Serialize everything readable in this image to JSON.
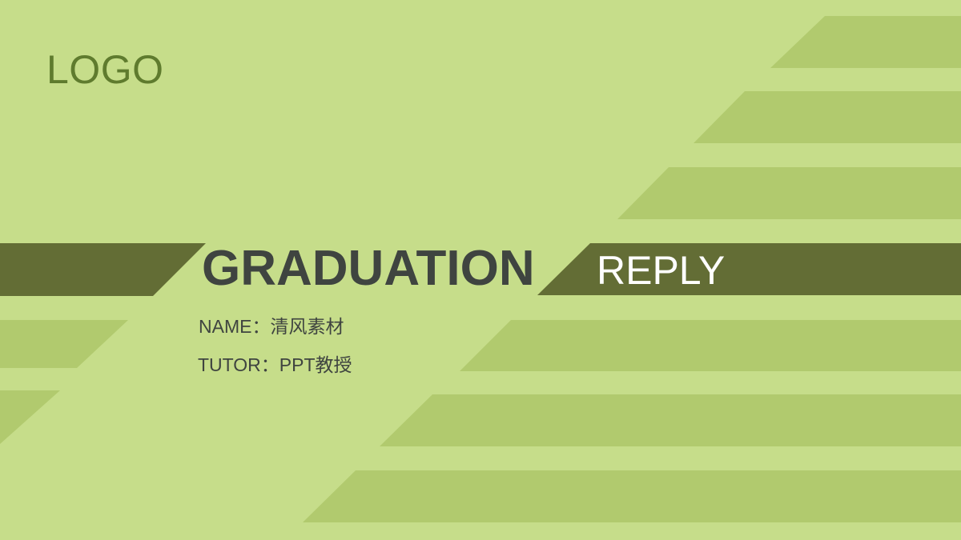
{
  "slide": {
    "logo": "LOGO",
    "title": "GRADUATION",
    "subtitle": "REPLY",
    "name_line": "NAME：清风素材",
    "tutor_line": "TUTOR：PPT教授"
  },
  "colors": {
    "background": "#c6dd8a",
    "stripe": "#b1ca6e",
    "band": "#636d35",
    "logo_text": "#5f7b2e",
    "title_text": "#3f4440",
    "subtitle_text": "#ffffff",
    "info_text": "#3f4440"
  }
}
